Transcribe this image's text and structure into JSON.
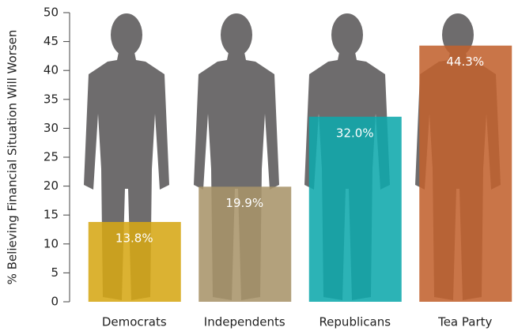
{
  "chart_data": {
    "type": "bar",
    "y_label": "% Believing Financial Situation Will Worsen",
    "categories": [
      "Democrats",
      "Independents",
      "Republicans",
      "Tea Party"
    ],
    "values": [
      13.8,
      19.9,
      32.0,
      44.3
    ],
    "value_labels": [
      "13.8%",
      "19.9%",
      "32.0%",
      "44.3%"
    ],
    "colors": [
      "#d6a716",
      "#a8946a",
      "#0fa9ac",
      "#c1622f"
    ],
    "ylim": [
      0,
      50
    ],
    "yticks": [
      0,
      5,
      10,
      15,
      20,
      25,
      30,
      35,
      40,
      45,
      50
    ]
  }
}
